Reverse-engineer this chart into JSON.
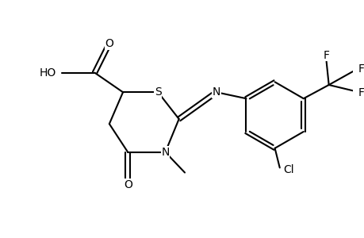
{
  "background_color": "#ffffff",
  "line_color": "#000000",
  "line_width": 1.5,
  "font_size": 10,
  "figsize": [
    4.6,
    3.0
  ],
  "dpi": 100,
  "xlim": [
    -3.0,
    4.2
  ],
  "ylim": [
    -2.2,
    2.2
  ]
}
